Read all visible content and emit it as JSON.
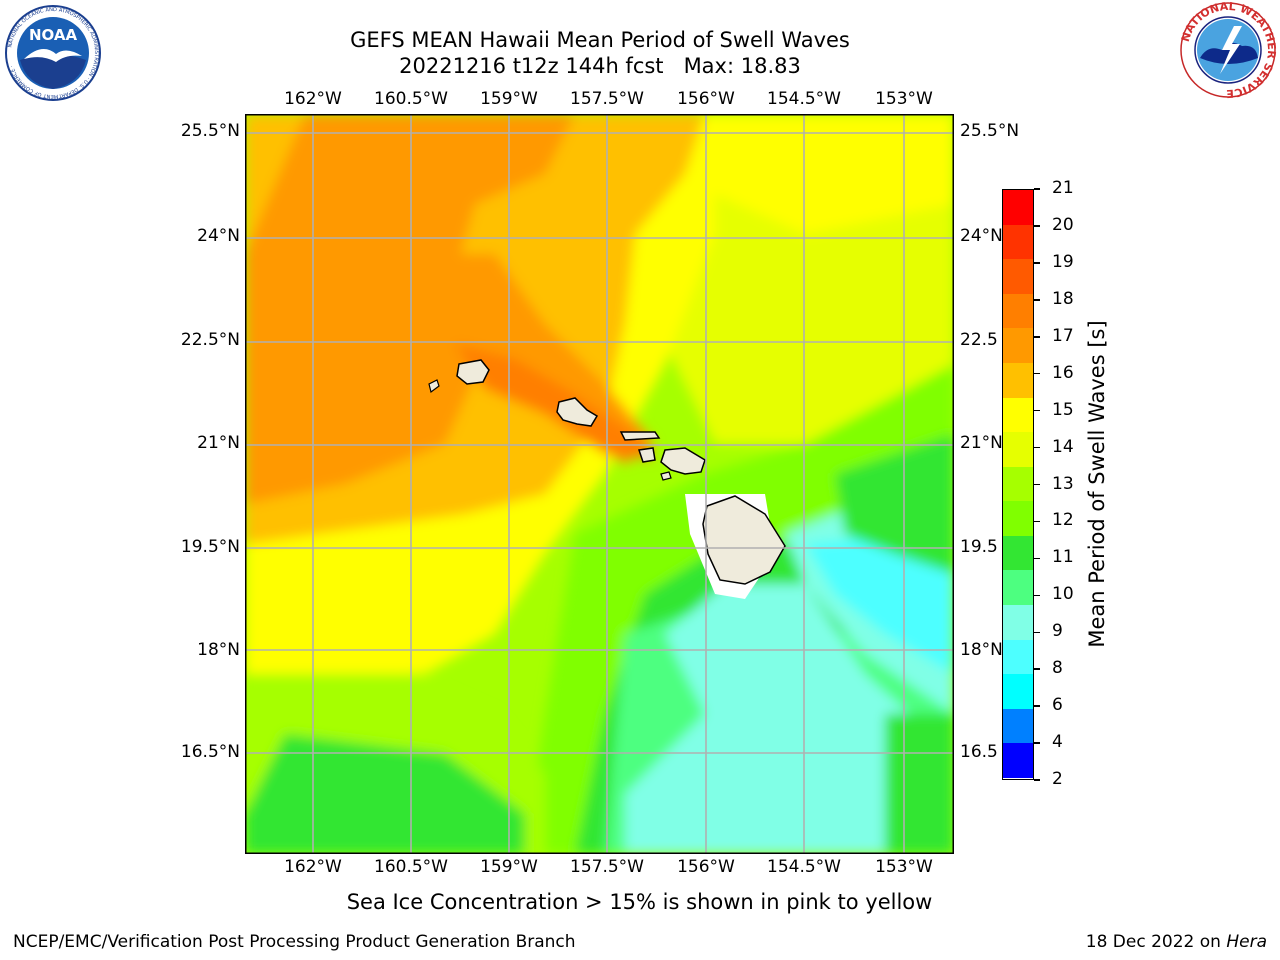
{
  "title": {
    "line1": "GEFS MEAN Hawaii Mean Period of Swell Waves",
    "line2": "20221216 t12z 144h fcst   Max: 18.83"
  },
  "logos": {
    "noaa_text": "NOAA",
    "noaa_ring": "NATIONAL OCEANIC AND ATMOSPHERIC ADMINISTRATION · U.S. DEPARTMENT OF COMMERCE ·",
    "nws_ring": "NATIONAL WEATHER SERVICE"
  },
  "map": {
    "lon_labels": [
      "162°W",
      "160.5°W",
      "159°W",
      "157.5°W",
      "156°W",
      "154.5°W",
      "153°W"
    ],
    "lat_labels": [
      "25.5°N",
      "24°N",
      "22.5°N",
      "21°N",
      "19.5°N",
      "18°N",
      "16.5°N"
    ],
    "lat_labels_right": [
      "25.5°N",
      "24°N",
      "22.5",
      "21°N",
      "19.5",
      "18°N",
      "16.5"
    ],
    "grid": true,
    "land_color": "#efebdc"
  },
  "colorbar": {
    "label": "Mean Period of Swell Waves [s]",
    "ticks": [
      "21",
      "20",
      "19",
      "18",
      "17",
      "16",
      "15",
      "14",
      "13",
      "12",
      "11",
      "10",
      "9",
      "8",
      "6",
      "4",
      "2"
    ],
    "colors_top_to_bottom": [
      "#ff0000",
      "#ff3300",
      "#ff5a00",
      "#ff7f00",
      "#ff9900",
      "#ffc000",
      "#ffff00",
      "#e6ff00",
      "#a6ff00",
      "#80ff00",
      "#33e633",
      "#4dff80",
      "#80ffe6",
      "#4dffff",
      "#00ffff",
      "#0080ff",
      "#0000ff"
    ]
  },
  "subtitle": "Sea Ice Concentration > 15% is shown in pink to yellow",
  "footer": {
    "left": "NCEP/EMC/Verification Post Processing Product Generation Branch",
    "right_prefix": "18 Dec 2022 on ",
    "right_host": "Hera"
  }
}
